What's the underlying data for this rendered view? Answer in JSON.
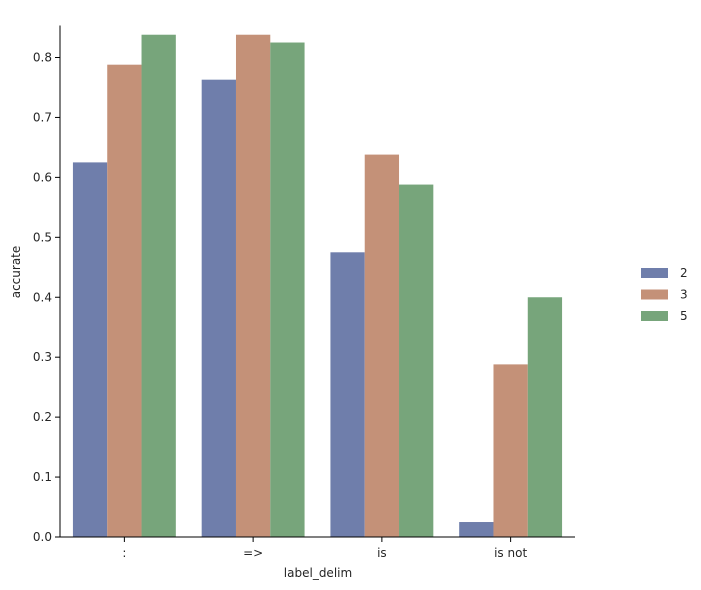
{
  "chart_data": {
    "type": "bar",
    "xlabel": "label_delim",
    "ylabel": "accurate",
    "categories": [
      ":",
      "=>",
      "is",
      "is not"
    ],
    "series": [
      {
        "name": "2",
        "color": "#6f7eab",
        "values": [
          0.625,
          0.763,
          0.475,
          0.025
        ]
      },
      {
        "name": "3",
        "color": "#c49178",
        "values": [
          0.788,
          0.838,
          0.638,
          0.288
        ]
      },
      {
        "name": "5",
        "color": "#77a57b",
        "values": [
          0.838,
          0.825,
          0.588,
          0.4
        ]
      }
    ],
    "ylim": [
      0,
      0.85
    ],
    "yticks": [
      "0.0",
      "0.1",
      "0.2",
      "0.3",
      "0.4",
      "0.5",
      "0.6",
      "0.7",
      "0.8"
    ],
    "grid": false,
    "legend_position": "right"
  }
}
